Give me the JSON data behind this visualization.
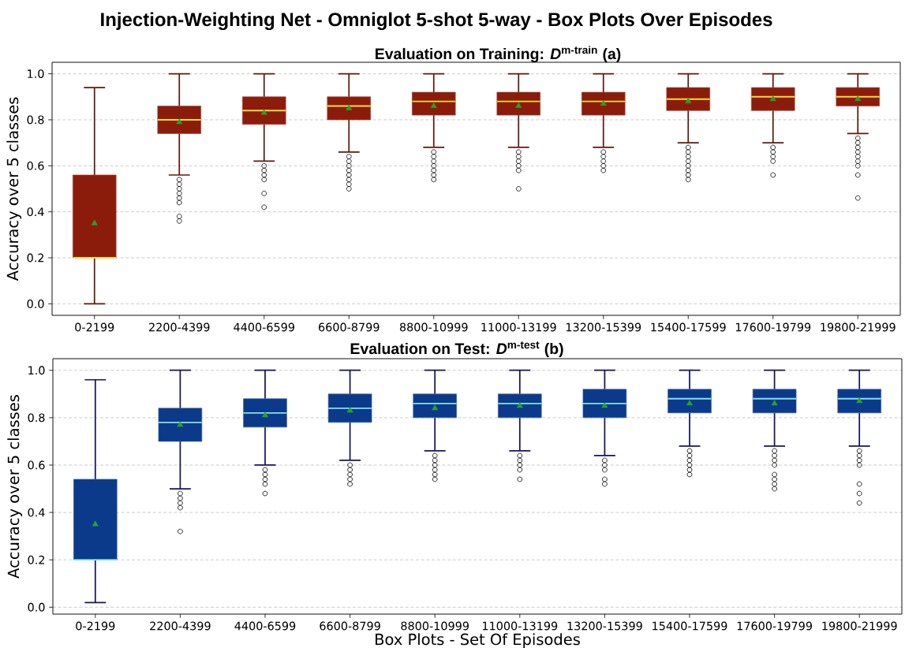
{
  "chart_data": [
    {
      "type": "box",
      "title": "Injection-Weighting Net - Omniglot 5-shot 5-way - Box Plots Over Episodes",
      "subtitle": "Evaluation on Training: *D*$^{m-train}$ (a)",
      "ylabel": "Accuracy over 5 classes",
      "categories": [
        "0-2199",
        "2200-4399",
        "4400-6599",
        "6600-8799",
        "8800-10999",
        "11000-13199",
        "13200-15399",
        "15400-17599",
        "17600-19799",
        "19800-21999"
      ],
      "series": [
        {
          "color": "#8b1c0b",
          "boxes": [
            {
              "low": 0.0,
              "q1": 0.2,
              "median": 0.2,
              "q3": 0.56,
              "high": 0.94,
              "mean": 0.35
            },
            {
              "low": 0.56,
              "q1": 0.74,
              "median": 0.8,
              "q3": 0.86,
              "high": 1.0,
              "mean": 0.79,
              "outliers": [
                0.54,
                0.52,
                0.5,
                0.48,
                0.46,
                0.44,
                0.38,
                0.36
              ]
            },
            {
              "low": 0.62,
              "q1": 0.78,
              "median": 0.84,
              "q3": 0.9,
              "high": 1.0,
              "mean": 0.83,
              "outliers": [
                0.6,
                0.58,
                0.56,
                0.54,
                0.48,
                0.42
              ]
            },
            {
              "low": 0.66,
              "q1": 0.8,
              "median": 0.86,
              "q3": 0.9,
              "high": 1.0,
              "mean": 0.85,
              "outliers": [
                0.64,
                0.62,
                0.6,
                0.58,
                0.56,
                0.54,
                0.52,
                0.5
              ]
            },
            {
              "low": 0.68,
              "q1": 0.82,
              "median": 0.88,
              "q3": 0.92,
              "high": 1.0,
              "mean": 0.86,
              "outliers": [
                0.66,
                0.64,
                0.62,
                0.6,
                0.58,
                0.56,
                0.54
              ]
            },
            {
              "low": 0.68,
              "q1": 0.82,
              "median": 0.88,
              "q3": 0.92,
              "high": 1.0,
              "mean": 0.86,
              "outliers": [
                0.66,
                0.64,
                0.62,
                0.6,
                0.58,
                0.5
              ]
            },
            {
              "low": 0.68,
              "q1": 0.82,
              "median": 0.88,
              "q3": 0.92,
              "high": 1.0,
              "mean": 0.87,
              "outliers": [
                0.66,
                0.64,
                0.62,
                0.6,
                0.58
              ]
            },
            {
              "low": 0.7,
              "q1": 0.84,
              "median": 0.89,
              "q3": 0.94,
              "high": 1.0,
              "mean": 0.88,
              "outliers": [
                0.68,
                0.66,
                0.64,
                0.62,
                0.6,
                0.58,
                0.56,
                0.54
              ]
            },
            {
              "low": 0.7,
              "q1": 0.84,
              "median": 0.9,
              "q3": 0.94,
              "high": 1.0,
              "mean": 0.89,
              "outliers": [
                0.68,
                0.66,
                0.64,
                0.62,
                0.56
              ]
            },
            {
              "low": 0.74,
              "q1": 0.86,
              "median": 0.9,
              "q3": 0.94,
              "high": 1.0,
              "mean": 0.89,
              "outliers": [
                0.72,
                0.7,
                0.68,
                0.66,
                0.64,
                0.62,
                0.6,
                0.56,
                0.46
              ]
            }
          ]
        }
      ],
      "ylim": [
        -0.05,
        1.05
      ],
      "yticks": [
        {
          "value": 0.0,
          "label": "0.0"
        },
        {
          "value": 0.2,
          "label": "0.2"
        },
        {
          "value": 0.4,
          "label": "0.4"
        },
        {
          "value": 0.6,
          "label": "0.6"
        },
        {
          "value": 0.8,
          "label": "0.8"
        },
        {
          "value": 1.0,
          "label": "1.0"
        }
      ],
      "grid": "y",
      "marker": "circle"
    },
    {
      "type": "box",
      "title": "Evaluation on Test: *D*$^{m-test}$ (b)",
      "xlabel": "Box Plots - Set Of Episodes",
      "ylabel": "Accuracy over 5 classes",
      "categories": [
        "0-2199",
        "2200-4399",
        "4400-6599",
        "6600-8799",
        "8800-10999",
        "11000-13199",
        "13200-15399",
        "15400-17599",
        "17600-19799",
        "19800-21999"
      ],
      "series": [
        {
          "color": "#0b3a8a",
          "boxes": [
            {
              "low": 0.02,
              "q1": 0.2,
              "median": 0.2,
              "q3": 0.54,
              "high": 0.96,
              "mean": 0.35
            },
            {
              "low": 0.5,
              "q1": 0.7,
              "median": 0.78,
              "q3": 0.84,
              "high": 1.0,
              "mean": 0.77,
              "outliers": [
                0.48,
                0.46,
                0.44,
                0.42,
                0.32
              ]
            },
            {
              "low": 0.6,
              "q1": 0.76,
              "median": 0.82,
              "q3": 0.88,
              "high": 1.0,
              "mean": 0.81,
              "outliers": [
                0.58,
                0.56,
                0.54,
                0.52,
                0.48
              ]
            },
            {
              "low": 0.62,
              "q1": 0.78,
              "median": 0.84,
              "q3": 0.9,
              "high": 1.0,
              "mean": 0.83,
              "outliers": [
                0.6,
                0.58,
                0.56,
                0.54,
                0.52
              ]
            },
            {
              "low": 0.66,
              "q1": 0.8,
              "median": 0.86,
              "q3": 0.9,
              "high": 1.0,
              "mean": 0.84,
              "outliers": [
                0.64,
                0.62,
                0.6,
                0.58,
                0.56,
                0.54
              ]
            },
            {
              "low": 0.66,
              "q1": 0.8,
              "median": 0.86,
              "q3": 0.9,
              "high": 1.0,
              "mean": 0.85,
              "outliers": [
                0.64,
                0.62,
                0.6,
                0.58,
                0.54
              ]
            },
            {
              "low": 0.64,
              "q1": 0.8,
              "median": 0.86,
              "q3": 0.92,
              "high": 1.0,
              "mean": 0.85,
              "outliers": [
                0.62,
                0.6,
                0.58,
                0.54,
                0.52
              ]
            },
            {
              "low": 0.68,
              "q1": 0.82,
              "median": 0.88,
              "q3": 0.92,
              "high": 1.0,
              "mean": 0.86,
              "outliers": [
                0.66,
                0.64,
                0.62,
                0.6,
                0.58,
                0.56
              ]
            },
            {
              "low": 0.68,
              "q1": 0.82,
              "median": 0.88,
              "q3": 0.92,
              "high": 1.0,
              "mean": 0.86,
              "outliers": [
                0.66,
                0.64,
                0.62,
                0.6,
                0.56,
                0.54,
                0.52,
                0.5
              ]
            },
            {
              "low": 0.68,
              "q1": 0.82,
              "median": 0.88,
              "q3": 0.92,
              "high": 1.0,
              "mean": 0.87,
              "outliers": [
                0.66,
                0.64,
                0.62,
                0.6,
                0.52,
                0.48,
                0.44
              ]
            }
          ]
        }
      ],
      "ylim": [
        -0.029,
        1.049
      ],
      "yticks": [
        {
          "value": 0.0,
          "label": "0.0"
        },
        {
          "value": 0.2,
          "label": "0.2"
        },
        {
          "value": 0.4,
          "label": "0.4"
        },
        {
          "value": 0.6,
          "label": "0.6"
        },
        {
          "value": 0.8,
          "label": "0.8"
        },
        {
          "value": 1.0,
          "label": "1.0"
        }
      ],
      "grid": "y",
      "marker": "circle"
    }
  ]
}
